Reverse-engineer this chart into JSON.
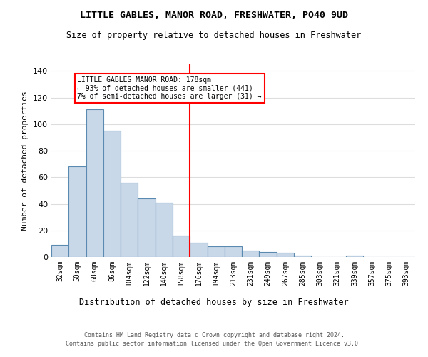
{
  "title": "LITTLE GABLES, MANOR ROAD, FRESHWATER, PO40 9UD",
  "subtitle": "Size of property relative to detached houses in Freshwater",
  "xlabel": "Distribution of detached houses by size in Freshwater",
  "ylabel": "Number of detached properties",
  "bar_labels": [
    "32sqm",
    "50sqm",
    "68sqm",
    "86sqm",
    "104sqm",
    "122sqm",
    "140sqm",
    "158sqm",
    "176sqm",
    "194sqm",
    "213sqm",
    "231sqm",
    "249sqm",
    "267sqm",
    "285sqm",
    "303sqm",
    "321sqm",
    "339sqm",
    "357sqm",
    "375sqm",
    "393sqm"
  ],
  "bar_values": [
    9,
    68,
    111,
    95,
    56,
    44,
    41,
    16,
    11,
    8,
    8,
    5,
    4,
    3,
    1,
    0,
    0,
    1,
    0,
    0,
    0
  ],
  "bar_color": "#c8d8e8",
  "bar_edge_color": "#5a8ab0",
  "highlight_line_color": "red",
  "highlight_bar_index": 8,
  "annotation_title": "LITTLE GABLES MANOR ROAD: 178sqm",
  "annotation_line1": "← 93% of detached houses are smaller (441)",
  "annotation_line2": "7% of semi-detached houses are larger (31) →",
  "annotation_box_color": "white",
  "annotation_box_edge_color": "red",
  "ylim": [
    0,
    145
  ],
  "yticks": [
    0,
    20,
    40,
    60,
    80,
    100,
    120,
    140
  ],
  "footer_line1": "Contains HM Land Registry data © Crown copyright and database right 2024.",
  "footer_line2": "Contains public sector information licensed under the Open Government Licence v3.0.",
  "bg_color": "white",
  "grid_color": "#dddddd"
}
